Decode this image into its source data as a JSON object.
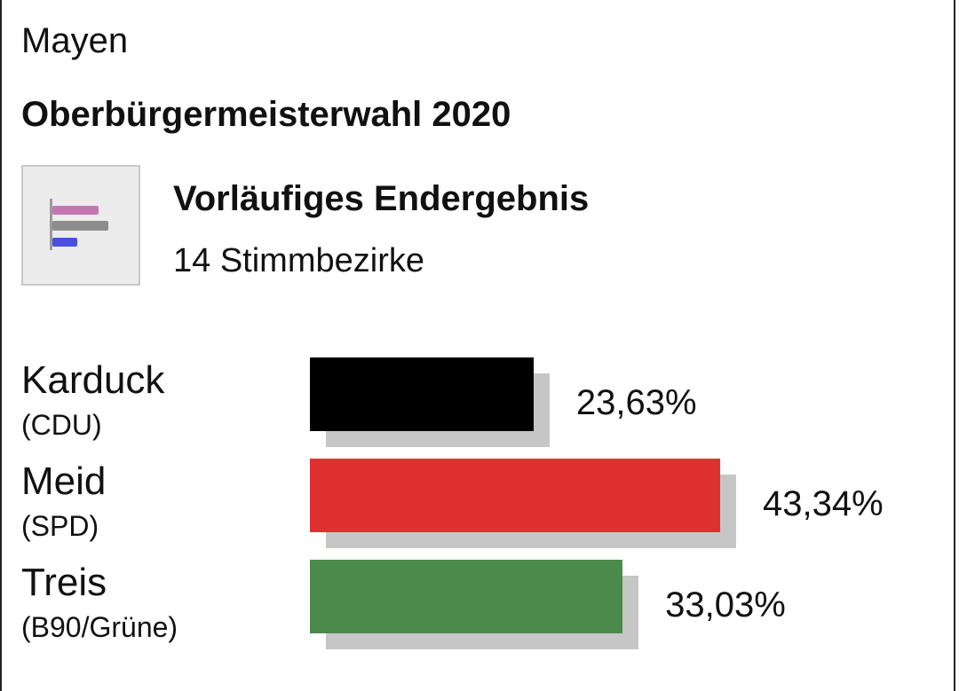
{
  "header": {
    "location": "Mayen",
    "election": "Oberbürgermeisterwahl 2020"
  },
  "status": {
    "title": "Vorläufiges Endergebnis",
    "subtitle": "14 Stimmbezirke",
    "icon": "bar-chart-icon"
  },
  "chart_data": {
    "type": "bar",
    "orientation": "horizontal",
    "categories": [
      "Karduck",
      "Meid",
      "Treis"
    ],
    "parties": [
      "(CDU)",
      "(SPD)",
      "(B90/Grüne)"
    ],
    "values": [
      23.63,
      43.34,
      33.03
    ],
    "value_labels": [
      "23,63%",
      "43,34%",
      "33,03%"
    ],
    "colors": [
      "#000000",
      "#e03131",
      "#4a8a4a"
    ],
    "shadow_color": "#c6c6c6",
    "xlim": [
      0,
      100
    ],
    "grid": false,
    "legend": "none"
  }
}
